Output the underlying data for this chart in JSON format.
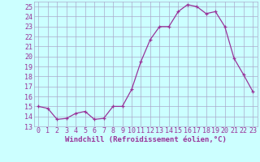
{
  "x": [
    0,
    1,
    2,
    3,
    4,
    5,
    6,
    7,
    8,
    9,
    10,
    11,
    12,
    13,
    14,
    15,
    16,
    17,
    18,
    19,
    20,
    21,
    22,
    23
  ],
  "y": [
    15.0,
    14.8,
    13.7,
    13.8,
    14.3,
    14.5,
    13.7,
    13.8,
    15.0,
    15.0,
    16.7,
    19.5,
    21.7,
    23.0,
    23.0,
    24.5,
    25.2,
    25.0,
    24.3,
    24.5,
    23.0,
    19.8,
    18.2,
    16.5
  ],
  "line_color": "#993399",
  "marker": "+",
  "xlabel": "Windchill (Refroidissement éolien,°C)",
  "ylabel_ticks": [
    13,
    14,
    15,
    16,
    17,
    18,
    19,
    20,
    21,
    22,
    23,
    24,
    25
  ],
  "xlim": [
    -0.5,
    23.5
  ],
  "ylim": [
    13,
    25.5
  ],
  "bg_color": "#ccffff",
  "grid_color": "#aaaacc",
  "xlabel_color": "#993399",
  "tick_color": "#993399",
  "xlabel_fontsize": 6.5,
  "tick_fontsize": 6.0
}
